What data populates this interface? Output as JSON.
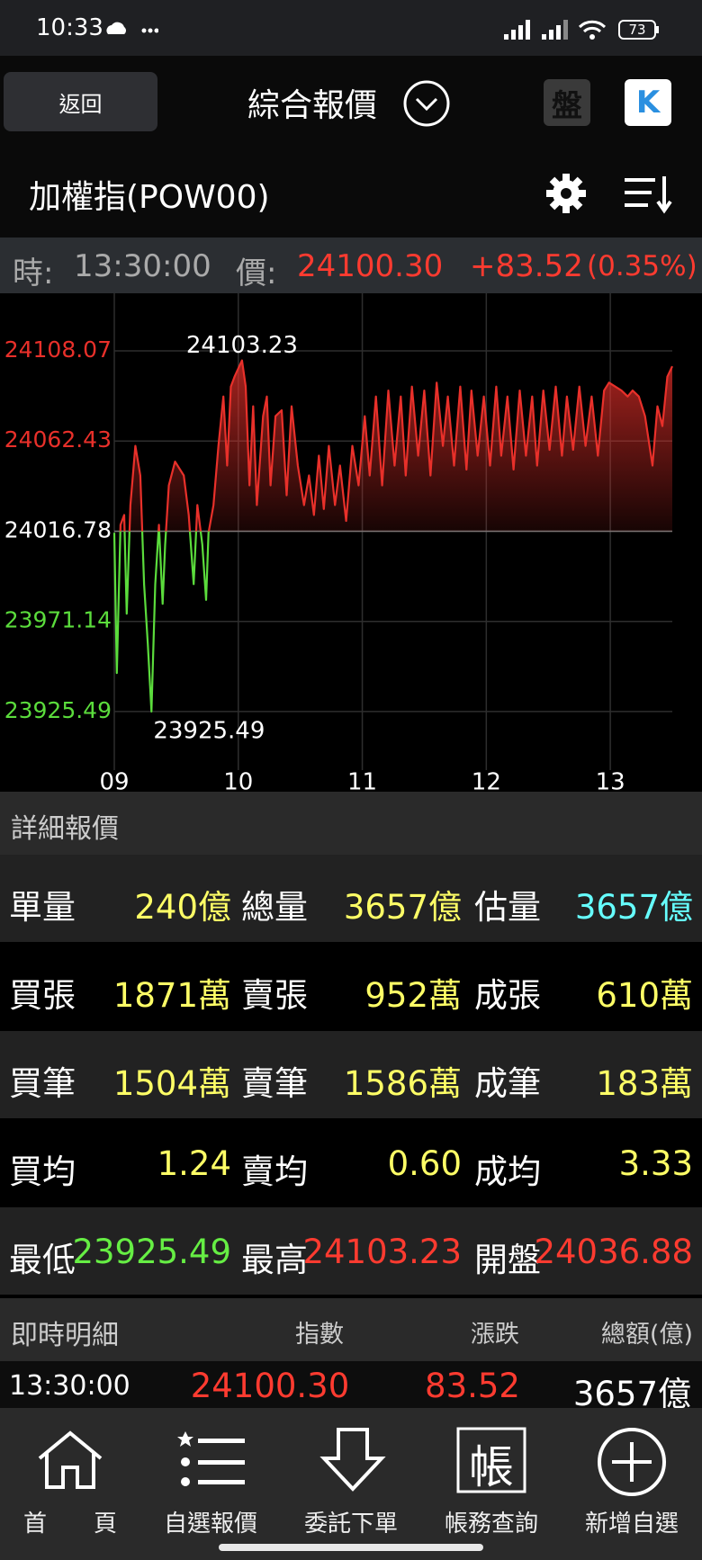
{
  "status_bar": {
    "time": "10:33",
    "battery": "73"
  },
  "header": {
    "back": "返回",
    "title": "綜合報價",
    "board_button": "盤",
    "k_button": "K"
  },
  "symbol": "加權指(POW00)",
  "quote_bar": {
    "time_label": "時:",
    "time": "13:30:00",
    "price_label": "價:",
    "price": "24100.30",
    "change": "+83.52",
    "change_pct": "(0.35%)"
  },
  "chart_data": {
    "type": "line",
    "x": [
      9.0,
      9.02,
      9.05,
      9.08,
      9.1,
      9.13,
      9.17,
      9.21,
      9.24,
      9.27,
      9.3,
      9.33,
      9.36,
      9.39,
      9.41,
      9.44,
      9.49,
      9.56,
      9.6,
      9.64,
      9.67,
      9.71,
      9.74,
      9.76,
      9.8,
      9.84,
      9.88,
      9.91,
      9.94,
      9.97,
      10.03,
      10.06,
      10.09,
      10.12,
      10.15,
      10.2,
      10.23,
      10.26,
      10.3,
      10.35,
      10.39,
      10.43,
      10.48,
      10.53,
      10.57,
      10.61,
      10.65,
      10.69,
      10.73,
      10.78,
      10.82,
      10.87,
      10.92,
      10.97,
      11.02,
      11.06,
      11.11,
      11.16,
      11.21,
      11.26,
      11.31,
      11.35,
      11.4,
      11.45,
      11.5,
      11.55,
      11.6,
      11.65,
      11.69,
      11.74,
      11.79,
      11.84,
      11.88,
      11.93,
      11.98,
      12.03,
      12.08,
      12.12,
      12.17,
      12.22,
      12.27,
      12.32,
      12.37,
      12.41,
      12.46,
      12.51,
      12.56,
      12.61,
      12.65,
      12.7,
      12.75,
      12.8,
      12.85,
      12.9,
      12.95,
      12.99,
      13.04,
      13.09,
      13.14,
      13.18,
      13.23,
      13.28,
      13.34,
      13.38,
      13.42,
      13.46,
      13.5
    ],
    "values": [
      24016,
      23945,
      24020,
      24025,
      23975,
      24030,
      24060,
      24045,
      23990,
      23960,
      23925.49,
      23990,
      24020,
      23980,
      24010,
      24040,
      24052,
      24045,
      24025,
      23990,
      24030,
      24010,
      23982,
      24016,
      24030,
      24060,
      24085,
      24050,
      24090,
      24095,
      24103.23,
      24090,
      24040,
      24080,
      24030,
      24075,
      24085,
      24040,
      24075,
      24078,
      24035,
      24080,
      24050,
      24030,
      24045,
      24025,
      24055,
      24028,
      24060,
      24030,
      24050,
      24022,
      24060,
      24040,
      24075,
      24045,
      24085,
      24040,
      24088,
      24050,
      24085,
      24045,
      24090,
      24055,
      24088,
      24045,
      24092,
      24060,
      24085,
      24050,
      24090,
      24048,
      24088,
      24055,
      24085,
      24050,
      24090,
      24055,
      24085,
      24048,
      24088,
      24055,
      24085,
      24050,
      24088,
      24058,
      24090,
      24055,
      24085,
      24058,
      24090,
      24060,
      24085,
      24055,
      24088,
      24092,
      24090,
      24088,
      24085,
      24088,
      24085,
      24075,
      24050,
      24080,
      24070,
      24095,
      24100.3
    ],
    "baseline": 24016.78,
    "up_color": "#e8302a",
    "down_color": "#5bdc3c",
    "xlim": [
      9,
      13.5
    ],
    "xticks": [
      {
        "value": 9,
        "label": "09"
      },
      {
        "value": 10,
        "label": "10"
      },
      {
        "value": 11,
        "label": "11"
      },
      {
        "value": 12,
        "label": "12"
      },
      {
        "value": 13,
        "label": "13"
      }
    ],
    "ylim": [
      23899.5,
      24135.4
    ],
    "yticks": [
      24108.07,
      24062.43,
      24016.78,
      23971.14,
      23925.49
    ],
    "ytick_colors": [
      "#e8302a",
      "#e8302a",
      "#ffffff",
      "#5bdc3c",
      "#5bdc3c"
    ],
    "grid": true,
    "annotations": [
      {
        "label": "24103.23",
        "x": 10.03,
        "y": 24103.23,
        "position": "above"
      },
      {
        "label": "23925.49",
        "x": 9.3,
        "y": 23925.49,
        "position": "below"
      }
    ]
  },
  "detail": {
    "title": "詳細報價",
    "rows": [
      [
        {
          "label": "單量",
          "value": "240億",
          "color": "#ffff66"
        },
        {
          "label": "總量",
          "value": "3657億",
          "color": "#ffff66"
        },
        {
          "label": "估量",
          "value": "3657億",
          "color": "#66ffff"
        }
      ],
      [
        {
          "label": "買張",
          "value": "1871萬",
          "color": "#ffff66"
        },
        {
          "label": "賣張",
          "value": "952萬",
          "color": "#ffff66"
        },
        {
          "label": "成張",
          "value": "610萬",
          "color": "#ffff66"
        }
      ],
      [
        {
          "label": "買筆",
          "value": "1504萬",
          "color": "#ffff66"
        },
        {
          "label": "賣筆",
          "value": "1586萬",
          "color": "#ffff66"
        },
        {
          "label": "成筆",
          "value": "183萬",
          "color": "#ffff66"
        }
      ],
      [
        {
          "label": "買均",
          "value": "1.24",
          "color": "#ffff66"
        },
        {
          "label": "賣均",
          "value": "0.60",
          "color": "#ffff66"
        },
        {
          "label": "成均",
          "value": "3.33",
          "color": "#ffff66"
        }
      ],
      [
        {
          "label": "最低",
          "value": "23925.49",
          "color": "#66ee44"
        },
        {
          "label": "最高",
          "value": "24103.23",
          "color": "#ff3b30"
        },
        {
          "label": "開盤",
          "value": "24036.88",
          "color": "#ff3b30"
        }
      ]
    ]
  },
  "ticks_table": {
    "title": "即時明細",
    "columns": [
      "指數",
      "漲跌",
      "總額(億)"
    ],
    "rows": [
      [
        "13:30:00",
        "24100.30",
        "83.52",
        "3657億"
      ]
    ]
  },
  "nav": [
    {
      "label": "首　　頁"
    },
    {
      "label": "自選報價"
    },
    {
      "label": "委託下單"
    },
    {
      "label": "帳務查詢",
      "icon_text": "帳"
    },
    {
      "label": "新增自選"
    }
  ]
}
